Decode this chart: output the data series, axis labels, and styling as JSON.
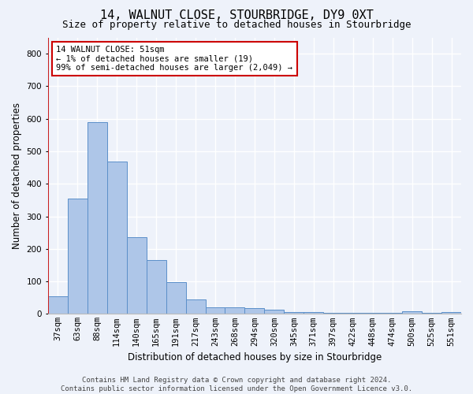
{
  "title": "14, WALNUT CLOSE, STOURBRIDGE, DY9 0XT",
  "subtitle": "Size of property relative to detached houses in Stourbridge",
  "xlabel": "Distribution of detached houses by size in Stourbridge",
  "ylabel": "Number of detached properties",
  "bar_labels": [
    "37sqm",
    "63sqm",
    "88sqm",
    "114sqm",
    "140sqm",
    "165sqm",
    "191sqm",
    "217sqm",
    "243sqm",
    "268sqm",
    "294sqm",
    "320sqm",
    "345sqm",
    "371sqm",
    "397sqm",
    "422sqm",
    "448sqm",
    "474sqm",
    "500sqm",
    "525sqm",
    "551sqm"
  ],
  "bar_values": [
    55,
    355,
    590,
    468,
    237,
    165,
    97,
    45,
    20,
    20,
    18,
    14,
    6,
    5,
    4,
    4,
    4,
    4,
    8,
    4,
    5
  ],
  "bar_color": "#aec6e8",
  "bar_edge_color": "#5b8fc9",
  "ylim": [
    0,
    850
  ],
  "yticks": [
    0,
    100,
    200,
    300,
    400,
    500,
    600,
    700,
    800
  ],
  "annotation_text": "14 WALNUT CLOSE: 51sqm\n← 1% of detached houses are smaller (19)\n99% of semi-detached houses are larger (2,049) →",
  "annotation_box_color": "#ffffff",
  "annotation_box_edge": "#cc0000",
  "footer_line1": "Contains HM Land Registry data © Crown copyright and database right 2024.",
  "footer_line2": "Contains public sector information licensed under the Open Government Licence v3.0.",
  "background_color": "#eef2fa",
  "grid_color": "#ffffff",
  "title_fontsize": 11,
  "subtitle_fontsize": 9,
  "axis_label_fontsize": 8.5,
  "tick_fontsize": 7.5,
  "annotation_fontsize": 7.5,
  "footer_fontsize": 6.5
}
